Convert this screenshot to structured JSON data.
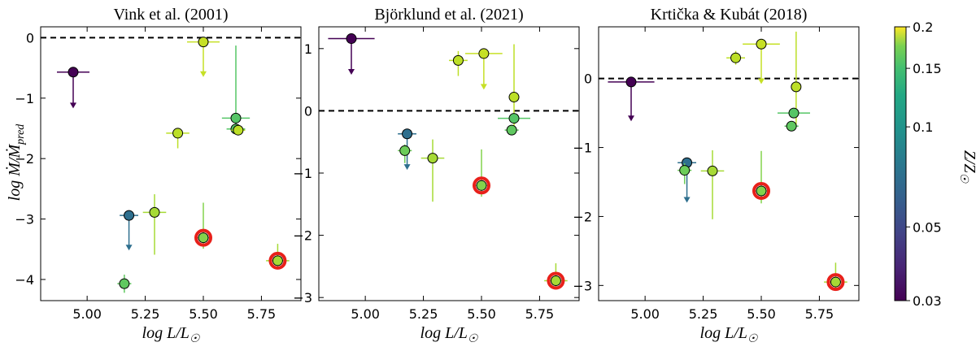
{
  "chart_data": {
    "type": "scatter",
    "shared": {
      "xlabel": "log L/L☉",
      "ylabel": "log Ṁ/Ṁpred",
      "xticks": [
        "5.00",
        "5.25",
        "5.50",
        "5.75"
      ],
      "xticks_values": [
        5.0,
        5.25,
        5.5,
        5.75
      ],
      "xlim": [
        4.8,
        5.92
      ],
      "reference_line": 0
    },
    "colorbar": {
      "label": "Z/Z☉",
      "scale": "log",
      "min": 0.03,
      "max": 0.2,
      "ticks": [
        {
          "value": 0.2,
          "label": "0.2"
        },
        {
          "value": 0.15,
          "label": "0.15"
        },
        {
          "value": 0.1,
          "label": "0.1"
        },
        {
          "value": 0.05,
          "label": "0.05"
        },
        {
          "value": 0.03,
          "label": "0.03"
        }
      ],
      "colormap": "viridis"
    },
    "panels": [
      {
        "title": "Vink et al. (2001)",
        "ylim": [
          -4.35,
          0.18
        ],
        "yticks": [
          0,
          -1,
          -2,
          -3,
          -4
        ],
        "yticks_labels": [
          "0",
          "−1",
          "−2",
          "−3",
          "−4"
        ],
        "points": [
          {
            "x": 4.94,
            "y": -0.57,
            "z": 0.03,
            "xerr": 0.07,
            "upper_limit": true,
            "arrow_to": -1.17
          },
          {
            "x": 5.5,
            "y": -0.07,
            "z": 0.17,
            "xerr": 0.07,
            "upper_limit": true,
            "arrow_to": -0.65
          },
          {
            "x": 5.39,
            "y": -1.58,
            "z": 0.165,
            "xerr": 0.05,
            "yerr_up": 0.08,
            "yerr_down": 0.25
          },
          {
            "x": 5.64,
            "y": -1.33,
            "z": 0.12,
            "xerr": 0.06,
            "yerr_up": 1.2,
            "yerr_down": 0.15
          },
          {
            "x": 5.64,
            "y": -1.51,
            "z": 0.12,
            "xerr": 0.04,
            "yerr_up": 0.05,
            "yerr_down": 0.05
          },
          {
            "x": 5.65,
            "y": -1.53,
            "z": 0.165,
            "xerr": 0.03,
            "yerr_up": 0.05,
            "yerr_down": 0.05
          },
          {
            "x": 5.18,
            "y": -2.94,
            "z": 0.06,
            "xerr": 0.04,
            "upper_limit": true,
            "arrow_to": -3.52
          },
          {
            "x": 5.29,
            "y": -2.89,
            "z": 0.155,
            "xerr": 0.05,
            "yerr_up": 0.3,
            "yerr_down": 0.7
          },
          {
            "x": 5.5,
            "y": -3.31,
            "z": 0.14,
            "xerr": 0.03,
            "yerr_up": 0.58,
            "yerr_down": 0.18,
            "highlight": true
          },
          {
            "x": 5.82,
            "y": -3.69,
            "z": 0.155,
            "xerr": 0.05,
            "yerr_up": 0.28,
            "yerr_down": 0.12,
            "highlight": true
          },
          {
            "x": 5.16,
            "y": -4.07,
            "z": 0.125,
            "xerr": 0.03,
            "yerr_up": 0.15,
            "yerr_down": 0.15
          }
        ]
      },
      {
        "title": "Björklund et al. (2021)",
        "ylim": [
          -3.05,
          1.35
        ],
        "yticks": [
          1,
          0,
          -1,
          -2,
          -3
        ],
        "yticks_labels": [
          "1",
          "0",
          "−1",
          "−2",
          "−3"
        ],
        "points": [
          {
            "x": 4.94,
            "y": 1.16,
            "z": 0.03,
            "xerr": 0.1,
            "upper_limit": true,
            "arrow_to": 0.58
          },
          {
            "x": 5.4,
            "y": 0.81,
            "z": 0.165,
            "xerr": 0.04,
            "yerr_up": 0.15,
            "yerr_down": 0.25
          },
          {
            "x": 5.51,
            "y": 0.92,
            "z": 0.17,
            "xerr": 0.08,
            "upper_limit": true,
            "arrow_to": 0.34
          },
          {
            "x": 5.64,
            "y": 0.22,
            "z": 0.165,
            "xerr": 0.0,
            "yerr_up": 0.85,
            "yerr_down": 0.55
          },
          {
            "x": 5.64,
            "y": -0.12,
            "z": 0.12,
            "xerr": 0.07,
            "yerr_up": 0.05,
            "yerr_down": 0.05
          },
          {
            "x": 5.63,
            "y": -0.31,
            "z": 0.125,
            "xerr": 0.03,
            "yerr_up": 0.04,
            "yerr_down": 0.04
          },
          {
            "x": 5.18,
            "y": -0.37,
            "z": 0.06,
            "xerr": 0.04,
            "upper_limit": true,
            "arrow_to": -0.95
          },
          {
            "x": 5.17,
            "y": -0.64,
            "z": 0.13,
            "xerr": 0.03,
            "yerr_up": 0.1,
            "yerr_down": 0.2
          },
          {
            "x": 5.29,
            "y": -0.76,
            "z": 0.155,
            "xerr": 0.05,
            "yerr_up": 0.3,
            "yerr_down": 0.7
          },
          {
            "x": 5.5,
            "y": -1.2,
            "z": 0.14,
            "xerr": 0.03,
            "yerr_up": 0.58,
            "yerr_down": 0.18,
            "highlight": true
          },
          {
            "x": 5.82,
            "y": -2.73,
            "z": 0.155,
            "xerr": 0.05,
            "yerr_up": 0.28,
            "yerr_down": 0.12,
            "highlight": true
          }
        ]
      },
      {
        "title": "Krtička & Kubát (2018)",
        "ylim": [
          -3.22,
          0.75
        ],
        "yticks": [
          0,
          -1,
          -2,
          -3
        ],
        "yticks_labels": [
          "0",
          "−1",
          "−2",
          "−3"
        ],
        "points": [
          {
            "x": 4.94,
            "y": -0.05,
            "z": 0.03,
            "xerr": 0.1,
            "upper_limit": true,
            "arrow_to": -0.62
          },
          {
            "x": 5.39,
            "y": 0.3,
            "z": 0.165,
            "xerr": 0.04,
            "yerr_up": 0.1,
            "yerr_down": 0.1
          },
          {
            "x": 5.5,
            "y": 0.5,
            "z": 0.17,
            "xerr": 0.08,
            "upper_limit": true,
            "arrow_to": -0.08
          },
          {
            "x": 5.65,
            "y": -0.12,
            "z": 0.165,
            "xerr": 0.0,
            "yerr_up": 0.8,
            "yerr_down": 0.55
          },
          {
            "x": 5.64,
            "y": -0.5,
            "z": 0.12,
            "xerr": 0.07,
            "yerr_up": 0.05,
            "yerr_down": 0.05
          },
          {
            "x": 5.63,
            "y": -0.69,
            "z": 0.125,
            "xerr": 0.03,
            "yerr_up": 0.04,
            "yerr_down": 0.04
          },
          {
            "x": 5.18,
            "y": -1.22,
            "z": 0.06,
            "xerr": 0.04,
            "upper_limit": true,
            "arrow_to": -1.8
          },
          {
            "x": 5.17,
            "y": -1.33,
            "z": 0.13,
            "xerr": 0.03,
            "yerr_up": 0.1,
            "yerr_down": 0.2
          },
          {
            "x": 5.29,
            "y": -1.34,
            "z": 0.155,
            "xerr": 0.05,
            "yerr_up": 0.3,
            "yerr_down": 0.7
          },
          {
            "x": 5.5,
            "y": -1.63,
            "z": 0.14,
            "xerr": 0.03,
            "yerr_up": 0.58,
            "yerr_down": 0.18,
            "highlight": true
          },
          {
            "x": 5.82,
            "y": -2.95,
            "z": 0.155,
            "xerr": 0.05,
            "yerr_up": 0.28,
            "yerr_down": 0.12,
            "highlight": true
          }
        ]
      }
    ]
  }
}
